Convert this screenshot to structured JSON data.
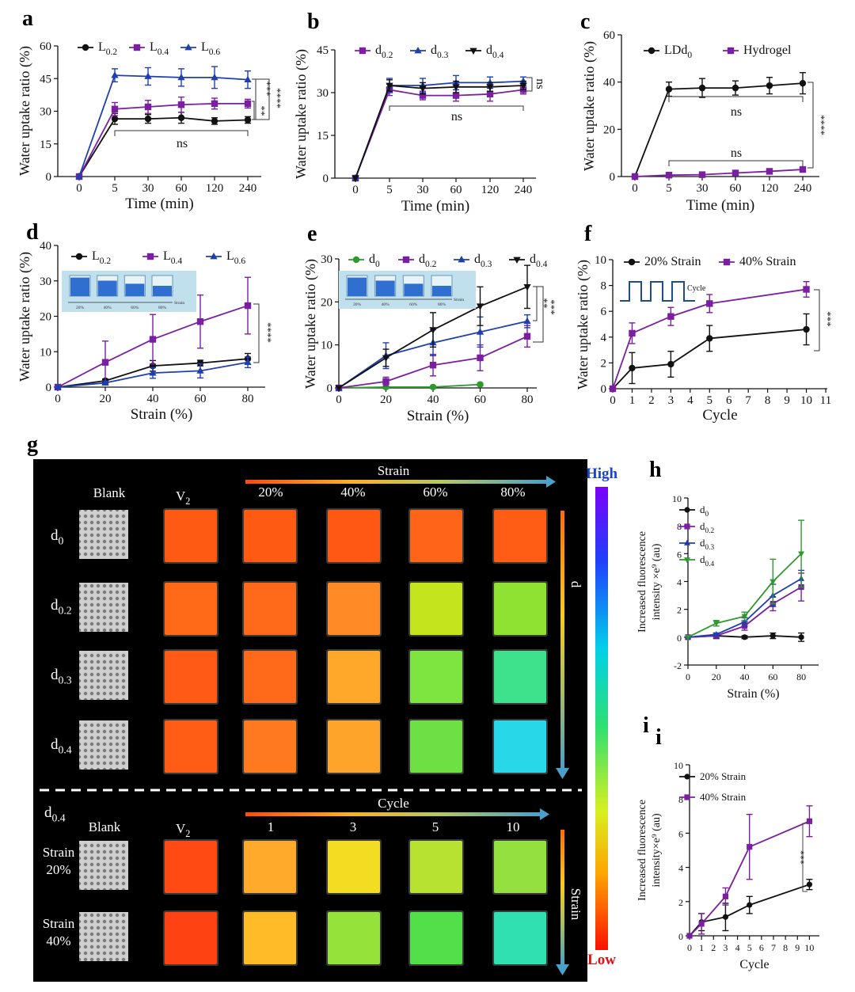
{
  "figure": {
    "panel_letters": [
      "a",
      "b",
      "c",
      "d",
      "e",
      "f",
      "g",
      "h",
      "i"
    ],
    "duplicate_letter": "i"
  },
  "chart_data": [
    {
      "id": "a",
      "type": "line",
      "xlabel": "Time (min)",
      "ylabel": "Water uptake ratio (%)",
      "x_ticks": [
        "0",
        "5",
        "30",
        "60",
        "120",
        "240"
      ],
      "y_ticks": [
        0,
        15,
        30,
        45,
        60
      ],
      "ylim": [
        0,
        60
      ],
      "legend": "top",
      "series": [
        {
          "name": "L0.2",
          "base": "L",
          "sub": "0.2",
          "color": "#111111",
          "marker": "circle",
          "values": [
            0,
            26.5,
            26.5,
            27,
            25.5,
            26
          ],
          "err": [
            0,
            2.5,
            2,
            2.5,
            1.5,
            1.5
          ]
        },
        {
          "name": "L0.4",
          "base": "L",
          "sub": "0.4",
          "color": "#7b1fa2",
          "marker": "square",
          "values": [
            0,
            31,
            32,
            33,
            33.5,
            33.5
          ],
          "err": [
            0,
            3,
            3,
            3.5,
            2.5,
            2
          ]
        },
        {
          "name": "L0.6",
          "base": "L",
          "sub": "0.6",
          "color": "#1f3fb0",
          "marker": "triangle",
          "values": [
            0,
            46.5,
            46,
            45.5,
            45.5,
            44.5
          ],
          "err": [
            0,
            3,
            4,
            4,
            5,
            4
          ]
        }
      ],
      "annotations": [
        "****",
        "***",
        "**",
        "ns"
      ]
    },
    {
      "id": "b",
      "type": "line",
      "xlabel": "Time (min)",
      "ylabel": "Water uptake ratio (%)",
      "x_ticks": [
        "0",
        "5",
        "30",
        "60",
        "120",
        "240"
      ],
      "y_ticks": [
        0,
        15,
        30,
        45
      ],
      "ylim": [
        0,
        45
      ],
      "legend": "top",
      "series": [
        {
          "name": "d0.2",
          "base": "d",
          "sub": "0.2",
          "color": "#7b1fa2",
          "marker": "square",
          "values": [
            0,
            31,
            29,
            29,
            29.5,
            31
          ],
          "err": [
            0,
            2,
            1.5,
            2,
            2.5,
            1.5
          ]
        },
        {
          "name": "d0.3",
          "base": "d",
          "sub": "0.3",
          "color": "#1f3fb0",
          "marker": "triangle",
          "values": [
            0,
            32.5,
            32.5,
            33.5,
            33.5,
            34
          ],
          "err": [
            0,
            2.5,
            2.5,
            2.5,
            2,
            1.5
          ]
        },
        {
          "name": "d0.4",
          "base": "d",
          "sub": "0.4",
          "color": "#111111",
          "marker": "triangle-down",
          "values": [
            0,
            32.5,
            31.5,
            32,
            32,
            32.5
          ],
          "err": [
            0,
            2,
            2,
            2,
            1.5,
            1.5
          ]
        }
      ],
      "annotations": [
        "ns",
        "ns"
      ]
    },
    {
      "id": "c",
      "type": "line",
      "xlabel": "Time (min)",
      "ylabel": "Water uptake ratio (%)",
      "x_ticks": [
        "0",
        "5",
        "30",
        "60",
        "120",
        "240"
      ],
      "y_ticks": [
        0,
        20,
        40,
        60
      ],
      "ylim": [
        0,
        60
      ],
      "legend": "top",
      "series": [
        {
          "name": "LDd0",
          "base": "LDd",
          "sub": "0",
          "color": "#111111",
          "marker": "circle",
          "values": [
            0,
            37,
            37.5,
            37.5,
            38.5,
            39.5
          ],
          "err": [
            0,
            3,
            4,
            3,
            3.5,
            4.5
          ]
        },
        {
          "name": "Hydrogel",
          "base": "Hydrogel",
          "sub": "",
          "color": "#7b1fa2",
          "marker": "square",
          "values": [
            0,
            0.6,
            0.8,
            1.5,
            2.2,
            3
          ],
          "err": [
            0,
            0.3,
            0.3,
            0.4,
            0.5,
            0.6
          ]
        }
      ],
      "annotations": [
        "ns",
        "ns",
        "****"
      ]
    },
    {
      "id": "d",
      "type": "line",
      "xlabel": "Strain (%)",
      "ylabel": "Water uptake ratio (%)",
      "x_ticks": [
        0,
        20,
        40,
        60,
        80
      ],
      "xlim": [
        0,
        80
      ],
      "y_ticks": [
        0,
        10,
        20,
        30,
        40
      ],
      "ylim": [
        0,
        40
      ],
      "legend": "top",
      "inset_labels": [
        "20%",
        "40%",
        "60%",
        "80%",
        "Strain"
      ],
      "series": [
        {
          "name": "L0.2",
          "base": "L",
          "sub": "0.2",
          "color": "#111111",
          "marker": "circle",
          "x": [
            0,
            20,
            40,
            60,
            80
          ],
          "values": [
            0,
            1.8,
            6,
            6.8,
            8
          ],
          "err": [
            0,
            0.5,
            1.5,
            0.8,
            1.5
          ]
        },
        {
          "name": "L0.4",
          "base": "L",
          "sub": "0.4",
          "color": "#7b1fa2",
          "marker": "square",
          "x": [
            0,
            20,
            40,
            60,
            80
          ],
          "values": [
            0,
            7,
            13.5,
            18.5,
            23
          ],
          "err": [
            0,
            6,
            7,
            7.5,
            8
          ]
        },
        {
          "name": "L0.6",
          "base": "L",
          "sub": "0.6",
          "color": "#1f3fb0",
          "marker": "triangle",
          "x": [
            0,
            20,
            40,
            60,
            80
          ],
          "values": [
            0,
            1.2,
            4,
            4.6,
            7
          ],
          "err": [
            0,
            0.5,
            1.5,
            2,
            1.5
          ]
        }
      ],
      "annotations": [
        "****"
      ]
    },
    {
      "id": "e",
      "type": "line",
      "xlabel": "Strain (%)",
      "ylabel": "Water uptake ratio (%)",
      "x_ticks": [
        0,
        20,
        40,
        60,
        80
      ],
      "xlim": [
        0,
        80
      ],
      "y_ticks": [
        0,
        10,
        20,
        30
      ],
      "ylim": [
        0,
        30
      ],
      "legend": "top",
      "inset_labels": [
        "20%",
        "40%",
        "60%",
        "80%",
        "Strain"
      ],
      "series": [
        {
          "name": "d0",
          "base": "d",
          "sub": "0",
          "color": "#2e9a2e",
          "marker": "circle",
          "x": [
            0,
            20,
            40,
            60
          ],
          "values": [
            0,
            0.2,
            0.2,
            0.8
          ],
          "err": [
            0,
            0.2,
            0.3,
            0.3
          ]
        },
        {
          "name": "d0.2",
          "base": "d",
          "sub": "0.2",
          "color": "#7b1fa2",
          "marker": "square",
          "x": [
            0,
            20,
            40,
            60,
            80
          ],
          "values": [
            0,
            1.5,
            5.3,
            7,
            12
          ],
          "err": [
            0,
            1,
            2.5,
            3,
            2.5
          ]
        },
        {
          "name": "d0.3",
          "base": "d",
          "sub": "0.3",
          "color": "#1f3fb0",
          "marker": "triangle",
          "x": [
            0,
            20,
            40,
            60,
            80
          ],
          "values": [
            0,
            7.5,
            10.5,
            13,
            15.5
          ],
          "err": [
            0,
            3,
            3,
            3.5,
            1.5
          ]
        },
        {
          "name": "d0.4",
          "base": "d",
          "sub": "0.4",
          "color": "#111111",
          "marker": "triangle-down",
          "x": [
            0,
            20,
            40,
            60,
            80
          ],
          "values": [
            0,
            7,
            13.5,
            19,
            23.5
          ],
          "err": [
            0,
            2,
            4,
            4.5,
            5
          ]
        }
      ],
      "annotations": [
        "***",
        "**"
      ]
    },
    {
      "id": "f",
      "type": "line",
      "xlabel": "Cycle",
      "ylabel": "Water uptake ratio (%)",
      "x_ticks": [
        0,
        1,
        2,
        3,
        4,
        5,
        6,
        7,
        8,
        9,
        10,
        11
      ],
      "xlim": [
        0,
        11
      ],
      "y_ticks": [
        0,
        2,
        4,
        6,
        8,
        10
      ],
      "ylim": [
        0,
        10
      ],
      "legend": "top",
      "inset_label": "Cycle",
      "series": [
        {
          "name": "20% Strain",
          "base": "20% Strain",
          "sub": "",
          "color": "#111111",
          "marker": "circle",
          "x": [
            0,
            1,
            3,
            5,
            10
          ],
          "values": [
            0,
            1.6,
            1.9,
            3.9,
            4.6
          ],
          "err": [
            0,
            1.2,
            1,
            1,
            1.2
          ]
        },
        {
          "name": "40% Strain",
          "base": "40% Strain",
          "sub": "",
          "color": "#7b1fa2",
          "marker": "square",
          "x": [
            0,
            1,
            3,
            5,
            10
          ],
          "values": [
            0,
            4.3,
            5.6,
            6.6,
            7.7
          ],
          "err": [
            0,
            0.8,
            0.7,
            0.7,
            0.6
          ]
        }
      ],
      "annotations": [
        "***"
      ]
    },
    {
      "id": "h",
      "type": "line",
      "xlabel": "Strain (%)",
      "ylabel_line1": "Increased fluorescence",
      "ylabel_line2": "intensity ×e⁹ (au)",
      "x_ticks": [
        0,
        20,
        40,
        60,
        80
      ],
      "xlim": [
        0,
        90
      ],
      "y_ticks": [
        -2,
        0,
        2,
        4,
        6,
        8,
        10
      ],
      "ylim": [
        -2,
        10
      ],
      "legend": "top-left",
      "series": [
        {
          "name": "d0",
          "base": "d",
          "sub": "0",
          "color": "#111111",
          "marker": "circle",
          "x": [
            0,
            20,
            40,
            60,
            80
          ],
          "values": [
            0,
            0.1,
            0,
            0.1,
            0
          ],
          "err": [
            0,
            0.2,
            0.1,
            0.2,
            0.3
          ]
        },
        {
          "name": "d0.2",
          "base": "d",
          "sub": "0.2",
          "color": "#7b1fa2",
          "marker": "square",
          "x": [
            0,
            20,
            40,
            60,
            80
          ],
          "values": [
            0,
            0.1,
            0.8,
            2.4,
            3.6
          ],
          "err": [
            0,
            0.1,
            0.3,
            0.5,
            1
          ]
        },
        {
          "name": "d0.3",
          "base": "d",
          "sub": "0.3",
          "color": "#1f3fb0",
          "marker": "triangle",
          "x": [
            0,
            20,
            40,
            60,
            80
          ],
          "values": [
            0,
            0.2,
            1.1,
            3,
            4.2
          ],
          "err": [
            0,
            0.1,
            0.3,
            0.8,
            0.6
          ]
        },
        {
          "name": "d0.4",
          "base": "d",
          "sub": "0.4",
          "color": "#2e9a2e",
          "marker": "triangle-down",
          "x": [
            0,
            20,
            40,
            60,
            80
          ],
          "values": [
            0,
            1,
            1.5,
            4,
            6
          ],
          "err": [
            0,
            0.2,
            0.3,
            1.6,
            2.4
          ]
        }
      ]
    },
    {
      "id": "i",
      "type": "line",
      "xlabel": "Cycle",
      "ylabel_line1": "Increased fluorescence",
      "ylabel_line2": "intensity×e⁹ (au)",
      "x_ticks": [
        0,
        1,
        2,
        3,
        4,
        5,
        6,
        7,
        8,
        9,
        10
      ],
      "xlim": [
        0,
        10.5
      ],
      "y_ticks": [
        0,
        2,
        4,
        6,
        8,
        10
      ],
      "ylim": [
        0,
        10
      ],
      "legend": "top-left",
      "series": [
        {
          "name": "20% Strain",
          "base": "20% Strain",
          "sub": "",
          "color": "#111111",
          "marker": "circle",
          "x": [
            0,
            1,
            3,
            5,
            10
          ],
          "values": [
            0,
            0.8,
            1.1,
            1.8,
            3
          ],
          "err": [
            0,
            0.5,
            0.8,
            0.5,
            0.3
          ]
        },
        {
          "name": "40% Strain",
          "base": "40% Strain",
          "sub": "",
          "color": "#7b1fa2",
          "marker": "square",
          "x": [
            0,
            1,
            3,
            5,
            10
          ],
          "values": [
            0,
            0.7,
            2.3,
            5.2,
            6.7
          ],
          "err": [
            0,
            0.6,
            0.5,
            1.9,
            0.9
          ]
        }
      ],
      "annotations": [
        "***"
      ]
    }
  ],
  "panel_g": {
    "top": {
      "row_labels": [
        {
          "base": "d",
          "sub": "0"
        },
        {
          "base": "d",
          "sub": "0.2"
        },
        {
          "base": "d",
          "sub": "0.3"
        },
        {
          "base": "d",
          "sub": "0.4"
        }
      ],
      "col_labels": [
        "20%",
        "40%",
        "60%",
        "80%"
      ],
      "blank_label": "Blank",
      "v_label": {
        "base": "V",
        "sub": "2"
      },
      "arrow_label": "Strain",
      "side_arrow_label": "d",
      "colors": [
        [
          "#ff5a14",
          "#ff5a14",
          "#ff5814",
          "#ff6418",
          "#ff5c16"
        ],
        [
          "#ff6a18",
          "#ff6a1a",
          "#ff8a26",
          "#c4e41e",
          "#8fe232"
        ],
        [
          "#ff5a16",
          "#ff6a1a",
          "#ffa82a",
          "#7ee440",
          "#3ee28c"
        ],
        [
          "#ff5c16",
          "#ff7a1e",
          "#ffa42a",
          "#6ee044",
          "#28d8e8"
        ]
      ]
    },
    "bottom": {
      "title": {
        "base": "d",
        "sub": "0.4"
      },
      "blank_label": "Blank",
      "v_label": {
        "base": "V",
        "sub": "2"
      },
      "arrow_label": "Cycle",
      "col_labels": [
        "1",
        "3",
        "5",
        "10"
      ],
      "row_labels": [
        [
          "Strain",
          "20%"
        ],
        [
          "Strain",
          "40%"
        ]
      ],
      "side_arrow_label": "Strain",
      "colors": [
        [
          "#ff4a14",
          "#ffaa2a",
          "#f4dc22",
          "#b8e232",
          "#94e03e"
        ],
        [
          "#ff4212",
          "#ffbc28",
          "#94e23a",
          "#52e04a",
          "#30e0b0"
        ]
      ]
    },
    "colorbar": {
      "high": "High",
      "low": "Low"
    }
  }
}
